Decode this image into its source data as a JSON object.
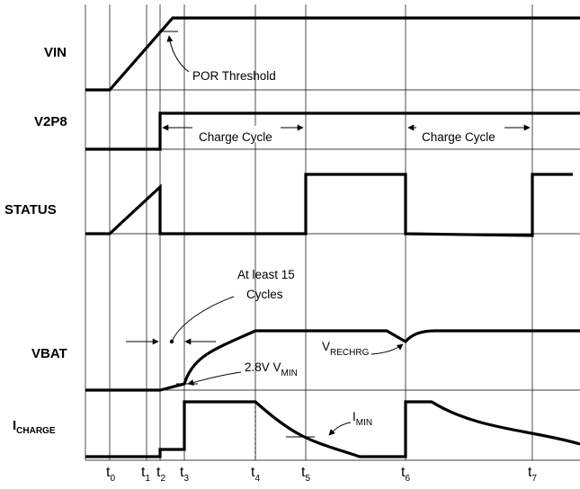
{
  "signals": {
    "vin": "VIN",
    "v2p8": "V2P8",
    "status": "STATUS",
    "vbat": "VBAT",
    "icharge_main": "I",
    "icharge_sub": "CHARGE"
  },
  "annotations": {
    "por_threshold": "POR Threshold",
    "charge_cycle_1": "Charge Cycle",
    "charge_cycle_2": "Charge Cycle",
    "at_least_line1": "At least 15",
    "at_least_line2": "Cycles",
    "vrechrg_main": "V",
    "vrechrg_sub": "RECHRG",
    "vmin_prefix": "2.8V V",
    "vmin_sub": "MIN",
    "imin_main": "I",
    "imin_sub": "MIN"
  },
  "time_labels": [
    {
      "main": "t",
      "sub": "0"
    },
    {
      "main": "t",
      "sub": "1"
    },
    {
      "main": "t",
      "sub": "2"
    },
    {
      "main": "t",
      "sub": "3"
    },
    {
      "main": "t",
      "sub": "4"
    },
    {
      "main": "t",
      "sub": "5"
    },
    {
      "main": "t",
      "sub": "6"
    },
    {
      "main": "t",
      "sub": "7"
    }
  ]
}
